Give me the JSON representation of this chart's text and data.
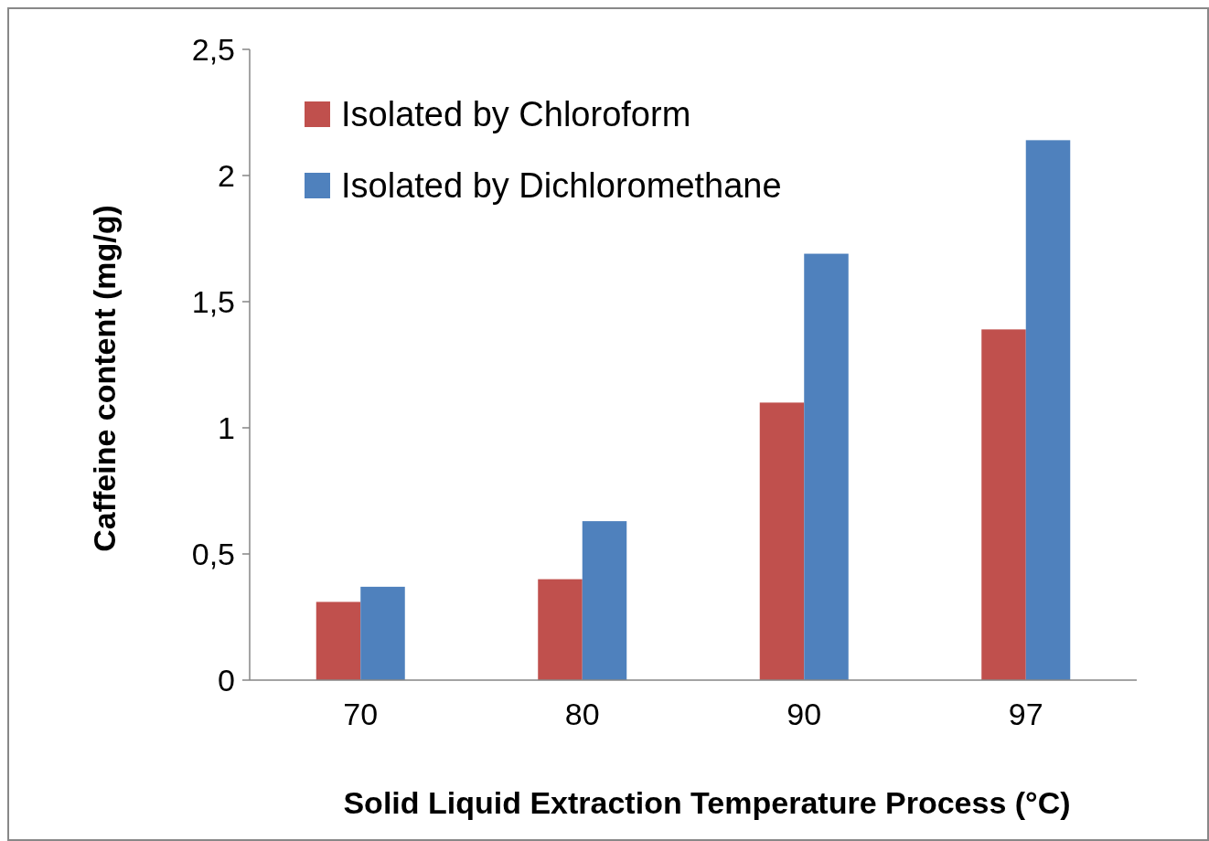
{
  "chart_data": {
    "type": "bar",
    "xlabel": "Solid Liquid Extraction Temperature Process (°C)",
    "ylabel": "Caffeine content  (mg/g)",
    "categories": [
      "70",
      "80",
      "90",
      "97"
    ],
    "series": [
      {
        "name": "Isolated by Chloroform",
        "color": "#c0504d",
        "values": [
          0.31,
          0.4,
          1.1,
          1.39
        ]
      },
      {
        "name": "Isolated by Dichloromethane",
        "color": "#4f81bd",
        "values": [
          0.37,
          0.63,
          1.69,
          2.14
        ]
      }
    ],
    "ylim": [
      0,
      2.5
    ],
    "yticks": [
      {
        "value": 0,
        "label": "0"
      },
      {
        "value": 0.5,
        "label": "0,5"
      },
      {
        "value": 1,
        "label": "1"
      },
      {
        "value": 1.5,
        "label": "1,5"
      },
      {
        "value": 2,
        "label": "2"
      },
      {
        "value": 2.5,
        "label": "2,5"
      }
    ],
    "grid": false,
    "legend": "top left"
  }
}
